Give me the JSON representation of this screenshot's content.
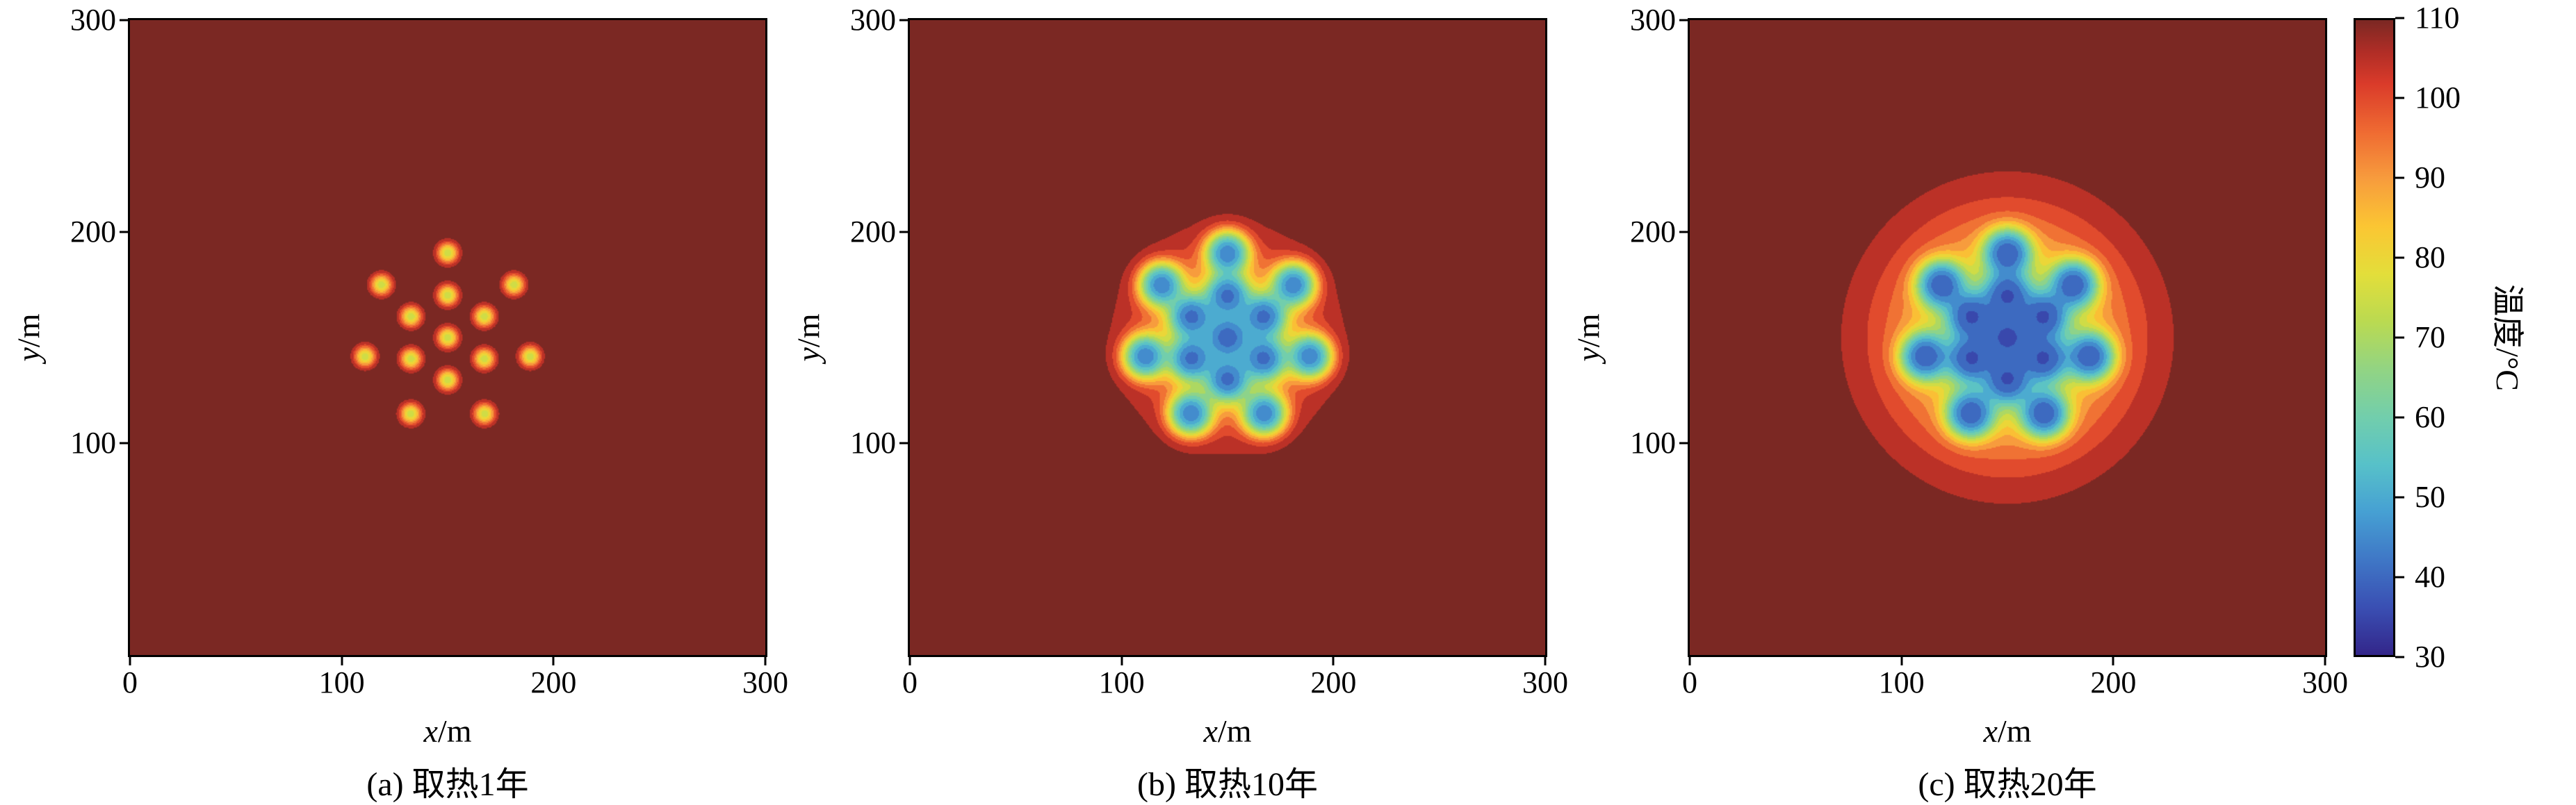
{
  "figure": {
    "background_color": "#ffffff",
    "frame_color": "#000000",
    "text_color": "#000000"
  },
  "chart_data": {
    "type": "heatmap",
    "subtype": "filled-contour-temperature-field",
    "description_visible_text_only": "Three square contour maps of ground temperature around a multi-well field after 1, 10 and 20 years of heat extraction, with shared colorbar",
    "x_axis": {
      "var": "x",
      "unit": "/m",
      "range": [
        0,
        300
      ],
      "ticks": [
        0,
        100,
        200,
        300
      ]
    },
    "y_axis": {
      "var": "y",
      "unit": "/m",
      "range": [
        0,
        300
      ],
      "ticks": [
        100,
        200,
        300
      ]
    },
    "colorbar": {
      "label": "温度/°C",
      "min": 30,
      "max": 110,
      "ticks": [
        110,
        100,
        90,
        80,
        70,
        60,
        50,
        40,
        30
      ]
    },
    "background_temp_c": 110,
    "min_temp_c": 30,
    "band_width_c": 5,
    "center_xy_m": [
      150,
      150
    ],
    "colormap": [
      {
        "t": 30,
        "c": "#33268a"
      },
      {
        "t": 36,
        "c": "#3a4fb3"
      },
      {
        "t": 42,
        "c": "#3f77c6"
      },
      {
        "t": 48,
        "c": "#46a0d3"
      },
      {
        "t": 54,
        "c": "#57c1c9"
      },
      {
        "t": 60,
        "c": "#72ceac"
      },
      {
        "t": 66,
        "c": "#92d483"
      },
      {
        "t": 72,
        "c": "#bada51"
      },
      {
        "t": 78,
        "c": "#e3de3a"
      },
      {
        "t": 84,
        "c": "#fbc633"
      },
      {
        "t": 90,
        "c": "#f79c3d"
      },
      {
        "t": 96,
        "c": "#ef6a32"
      },
      {
        "t": 102,
        "c": "#da3b2a"
      },
      {
        "t": 106,
        "c": "#b02d26"
      },
      {
        "t": 110,
        "c": "#7b2823"
      }
    ],
    "wells_xy_m": [
      [
        150,
        150
      ],
      [
        167.3,
        160
      ],
      [
        150,
        170
      ],
      [
        132.7,
        160
      ],
      [
        132.7,
        140
      ],
      [
        150,
        130
      ],
      [
        167.3,
        140
      ],
      [
        150,
        190
      ],
      [
        118.7,
        175
      ],
      [
        111.0,
        141.1
      ],
      [
        132.6,
        114.0
      ],
      [
        167.4,
        114.0
      ],
      [
        189.0,
        141.1
      ],
      [
        181.3,
        175.0
      ]
    ],
    "panels": [
      {
        "id": "a",
        "caption": "(a) 取热1年",
        "years": 1,
        "sigma_m": 3.2,
        "strength": 0.65,
        "halo_sigma_m": 20,
        "halo_strength": 0.0
      },
      {
        "id": "b",
        "caption": "(b) 取热10年",
        "years": 10,
        "sigma_m": 6.0,
        "strength": 1.8,
        "halo_sigma_m": 26,
        "halo_strength": 0.6
      },
      {
        "id": "c",
        "caption": "(c) 取热20年",
        "years": 20,
        "sigma_m": 6.5,
        "strength": 2.2,
        "halo_sigma_m": 35,
        "halo_strength": 0.8
      }
    ]
  }
}
